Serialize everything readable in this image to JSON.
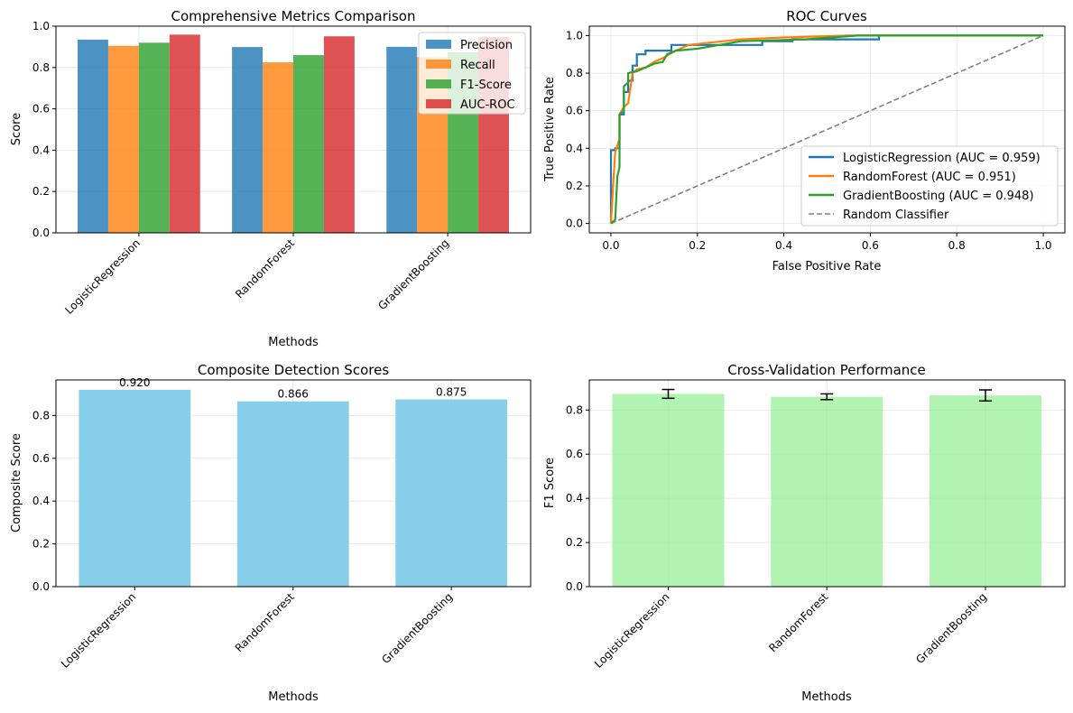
{
  "colors": {
    "precision": "#1f77b4",
    "recall": "#ff7f0e",
    "f1": "#2ca02c",
    "auc": "#d62728",
    "composite": "#87ceeb",
    "cv": "#90ee90",
    "diagonal": "#808080"
  },
  "chart_data": [
    {
      "id": "metrics",
      "type": "bar",
      "title": "Comprehensive Metrics Comparison",
      "xlabel": "Methods",
      "ylabel": "Score",
      "categories": [
        "LogisticRegression",
        "RandomForest",
        "GradientBoosting"
      ],
      "series": [
        {
          "name": "Precision",
          "values": [
            0.935,
            0.899,
            0.9
          ]
        },
        {
          "name": "Recall",
          "values": [
            0.905,
            0.825,
            0.85
          ]
        },
        {
          "name": "F1-Score",
          "values": [
            0.92,
            0.86,
            0.874
          ]
        },
        {
          "name": "AUC-ROC",
          "values": [
            0.959,
            0.951,
            0.948
          ]
        }
      ],
      "ylim": [
        0,
        1.0
      ],
      "yticks": [
        "0.0",
        "0.2",
        "0.4",
        "0.6",
        "0.8",
        "1.0"
      ],
      "legend": "top-right",
      "grid": true
    },
    {
      "id": "roc",
      "type": "line",
      "title": "ROC Curves",
      "xlabel": "False Positive Rate",
      "ylabel": "True Positive Rate",
      "xlim": [
        -0.05,
        1.05
      ],
      "ylim": [
        -0.05,
        1.05
      ],
      "xticks": [
        "0.0",
        "0.2",
        "0.4",
        "0.6",
        "0.8",
        "1.0"
      ],
      "yticks": [
        "0.0",
        "0.2",
        "0.4",
        "0.6",
        "0.8",
        "1.0"
      ],
      "legend": "lower-right",
      "grid": true,
      "series": [
        {
          "name": "LogisticRegression (AUC = 0.959)",
          "x": [
            0,
            0,
            0.01,
            0.01,
            0.02,
            0.02,
            0.03,
            0.03,
            0.04,
            0.04,
            0.05,
            0.05,
            0.06,
            0.06,
            0.08,
            0.08,
            0.14,
            0.14,
            0.35,
            0.35,
            0.42,
            0.42,
            0.62,
            0.62,
            1.0
          ],
          "y": [
            0,
            0.39,
            0.39,
            0.4,
            0.4,
            0.58,
            0.58,
            0.7,
            0.7,
            0.76,
            0.76,
            0.84,
            0.84,
            0.9,
            0.9,
            0.92,
            0.92,
            0.95,
            0.95,
            0.97,
            0.97,
            0.98,
            0.98,
            1.0,
            1.0
          ]
        },
        {
          "name": "RandomForest (AUC = 0.951)",
          "x": [
            0,
            0.005,
            0.01,
            0.02,
            0.02,
            0.03,
            0.04,
            0.05,
            0.06,
            0.08,
            0.1,
            0.12,
            0.15,
            0.18,
            0.22,
            0.26,
            0.3,
            0.4,
            0.55,
            1.0
          ],
          "y": [
            0,
            0.2,
            0.38,
            0.45,
            0.58,
            0.62,
            0.64,
            0.8,
            0.82,
            0.83,
            0.86,
            0.88,
            0.92,
            0.95,
            0.96,
            0.97,
            0.98,
            0.99,
            1.0,
            1.0
          ]
        },
        {
          "name": "GradientBoosting (AUC = 0.948)",
          "x": [
            0,
            0.01,
            0.015,
            0.02,
            0.02,
            0.03,
            0.03,
            0.04,
            0.04,
            0.06,
            0.07,
            0.08,
            0.1,
            0.12,
            0.13,
            0.15,
            0.2,
            0.25,
            0.3,
            0.45,
            0.57,
            1.0
          ],
          "y": [
            0,
            0.02,
            0.25,
            0.3,
            0.58,
            0.6,
            0.73,
            0.75,
            0.8,
            0.81,
            0.82,
            0.83,
            0.85,
            0.86,
            0.9,
            0.92,
            0.93,
            0.95,
            0.97,
            0.98,
            1.0,
            1.0
          ]
        },
        {
          "name": "Random Classifier",
          "x": [
            0,
            1
          ],
          "y": [
            0,
            1
          ],
          "dashed": true
        }
      ]
    },
    {
      "id": "composite",
      "type": "bar",
      "title": "Composite Detection Scores",
      "xlabel": "Methods",
      "ylabel": "Composite Score",
      "categories": [
        "LogisticRegression",
        "RandomForest",
        "GradientBoosting"
      ],
      "values": [
        0.92,
        0.866,
        0.875
      ],
      "labels": [
        "0.920",
        "0.866",
        "0.875"
      ],
      "ylim": [
        0,
        0.966
      ],
      "yticks": [
        "0.0",
        "0.2",
        "0.4",
        "0.6",
        "0.8"
      ],
      "grid": true
    },
    {
      "id": "cv",
      "type": "bar",
      "title": "Cross-Validation Performance",
      "xlabel": "Methods",
      "ylabel": "F1 Score",
      "categories": [
        "LogisticRegression",
        "RandomForest",
        "GradientBoosting"
      ],
      "values": [
        0.873,
        0.86,
        0.866
      ],
      "errors": [
        0.02,
        0.013,
        0.025
      ],
      "ylim": [
        0,
        0.936
      ],
      "yticks": [
        "0.0",
        "0.2",
        "0.4",
        "0.6",
        "0.8"
      ],
      "grid": true
    }
  ]
}
